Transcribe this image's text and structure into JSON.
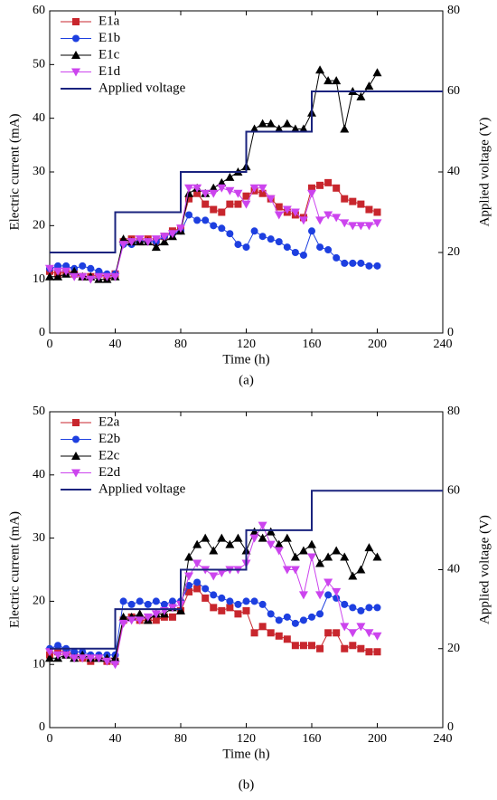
{
  "chart_data": [
    {
      "type": "line",
      "caption": "(a)",
      "xlabel": "Time (h)",
      "ylabel": "Electric current (mA)",
      "y2label": "Applied voltage (V)",
      "xlim": [
        0,
        240
      ],
      "xticks": [
        0,
        40,
        80,
        120,
        160,
        200,
        240
      ],
      "ylim": [
        0,
        60
      ],
      "yticks": [
        0,
        10,
        20,
        30,
        40,
        50,
        60
      ],
      "y2lim": [
        0,
        80
      ],
      "y2ticks": [
        0,
        20,
        40,
        60,
        80
      ],
      "legend": "upper left",
      "x": [
        0,
        5,
        10,
        15,
        20,
        25,
        30,
        35,
        40,
        45,
        50,
        55,
        60,
        65,
        70,
        75,
        80,
        85,
        90,
        95,
        100,
        105,
        110,
        115,
        120,
        125,
        130,
        135,
        140,
        145,
        150,
        155,
        160,
        165,
        170,
        175,
        180,
        185,
        190,
        195,
        200
      ],
      "series": [
        {
          "name": "E1a",
          "color": "#c8262d",
          "marker": "square",
          "values": [
            11.5,
            11,
            11.5,
            11,
            10.5,
            10.5,
            11,
            10.5,
            11,
            17,
            17.5,
            17,
            17.5,
            17,
            18,
            19,
            19.5,
            25,
            26,
            24,
            23,
            22.5,
            24,
            24,
            25.5,
            26.5,
            26,
            25,
            23.5,
            22.5,
            22,
            21.5,
            27,
            27.5,
            28,
            27,
            25,
            24.5,
            24,
            23,
            22.5
          ]
        },
        {
          "name": "E1b",
          "color": "#1d3fe0",
          "marker": "circle",
          "values": [
            12,
            12.5,
            12.5,
            12,
            12.5,
            12,
            11.5,
            11,
            11,
            16.5,
            16.5,
            17,
            17,
            17,
            18,
            18.5,
            19,
            22,
            21,
            21,
            20,
            19.5,
            18.5,
            16.5,
            16,
            19,
            18,
            17.5,
            17,
            16,
            15,
            14.5,
            19,
            16,
            15.5,
            14,
            13,
            13,
            13,
            12.5,
            12.5
          ]
        },
        {
          "name": "E1c",
          "color": "#000000",
          "marker": "triangle",
          "values": [
            10.5,
            10.5,
            11,
            11.5,
            10.5,
            10.5,
            10,
            10,
            10.5,
            17.5,
            17,
            17,
            17,
            16,
            17,
            18,
            19,
            26,
            27,
            26,
            27,
            28,
            29,
            30,
            31,
            38,
            39,
            39,
            38,
            39,
            38,
            38,
            41,
            49,
            47,
            47,
            38,
            45,
            44,
            46,
            48.5
          ]
        },
        {
          "name": "E1d",
          "color": "#cc44ee",
          "marker": "down",
          "values": [
            12,
            11.5,
            11.5,
            10.5,
            10.5,
            10,
            10.5,
            10.5,
            10.5,
            16.5,
            17,
            17.5,
            17,
            17.5,
            18,
            18.5,
            19.5,
            27,
            27,
            26,
            26,
            27,
            26.5,
            26,
            24,
            27,
            27,
            25,
            22,
            23,
            22.5,
            21,
            26,
            21,
            22,
            21.5,
            20.5,
            20,
            20,
            20,
            20.5
          ]
        },
        {
          "name": "Applied voltage",
          "color": "#1a237e",
          "axis": "y2",
          "x": [
            0,
            40,
            40,
            80,
            80,
            120,
            120,
            160,
            160,
            240
          ],
          "values": [
            20,
            20,
            30,
            30,
            40,
            40,
            50,
            50,
            60,
            60
          ]
        }
      ]
    },
    {
      "type": "line",
      "caption": "(b)",
      "xlabel": "Time (h)",
      "ylabel": "Electric current (mA)",
      "y2label": "Applied voltage (V)",
      "xlim": [
        0,
        240
      ],
      "xticks": [
        0,
        40,
        80,
        120,
        160,
        200,
        240
      ],
      "ylim": [
        0,
        50
      ],
      "yticks": [
        0,
        10,
        20,
        30,
        40,
        50
      ],
      "y2lim": [
        0,
        80
      ],
      "y2ticks": [
        0,
        20,
        40,
        60,
        80
      ],
      "legend": "upper left",
      "x": [
        0,
        5,
        10,
        15,
        20,
        25,
        30,
        35,
        40,
        45,
        50,
        55,
        60,
        65,
        70,
        75,
        80,
        85,
        90,
        95,
        100,
        105,
        110,
        115,
        120,
        125,
        130,
        135,
        140,
        145,
        150,
        155,
        160,
        165,
        170,
        175,
        180,
        185,
        190,
        195,
        200
      ],
      "series": [
        {
          "name": "E2a",
          "color": "#c8262d",
          "marker": "square",
          "values": [
            11.5,
            12,
            12,
            11.5,
            11,
            10.5,
            11,
            10.5,
            10.5,
            17,
            17.5,
            17,
            17,
            17,
            17.5,
            17.5,
            18.5,
            21.5,
            22,
            20.5,
            19,
            18.5,
            19,
            18,
            18.5,
            15,
            16,
            15,
            14.5,
            14,
            13,
            13,
            13,
            12.5,
            15,
            15,
            12.5,
            13,
            12.5,
            12,
            12
          ]
        },
        {
          "name": "E2b",
          "color": "#1d3fe0",
          "marker": "circle",
          "values": [
            12.5,
            13,
            12.5,
            12,
            12,
            11.5,
            11.5,
            11.5,
            11.5,
            20,
            19.5,
            20,
            19.5,
            20,
            19.5,
            20,
            20,
            22.5,
            23,
            22,
            21,
            20.5,
            20,
            19.5,
            20,
            20,
            19.5,
            18,
            17,
            17.5,
            16.5,
            17,
            17.5,
            18,
            21,
            20.5,
            19.5,
            19,
            18.5,
            19,
            19
          ]
        },
        {
          "name": "E2c",
          "color": "#000000",
          "marker": "triangle",
          "values": [
            11,
            11,
            11.5,
            11,
            11.5,
            11,
            11,
            11,
            11,
            17.5,
            17.5,
            18,
            17,
            18,
            18,
            19,
            18.5,
            27,
            29,
            30,
            28,
            30,
            29,
            30,
            28,
            31,
            30,
            31,
            29,
            30,
            27,
            28,
            29,
            26,
            27,
            28,
            27,
            24,
            25,
            28.5,
            27
          ]
        },
        {
          "name": "E2d",
          "color": "#cc44ee",
          "marker": "down",
          "values": [
            12,
            11.5,
            11.5,
            11,
            11,
            11,
            11,
            10.5,
            10,
            16.5,
            17,
            17,
            17.5,
            18,
            18.5,
            19,
            19.5,
            24,
            26,
            25,
            24,
            24.5,
            25,
            25,
            26,
            30,
            32,
            29,
            28,
            25,
            25,
            21,
            27,
            21,
            23,
            21.5,
            16,
            15,
            16,
            15,
            14.5
          ]
        },
        {
          "name": "Applied voltage",
          "color": "#1a237e",
          "axis": "y2",
          "x": [
            0,
            40,
            40,
            80,
            80,
            120,
            120,
            160,
            160,
            240
          ],
          "values": [
            20,
            20,
            30,
            30,
            40,
            40,
            50,
            50,
            60,
            60
          ]
        }
      ]
    }
  ]
}
